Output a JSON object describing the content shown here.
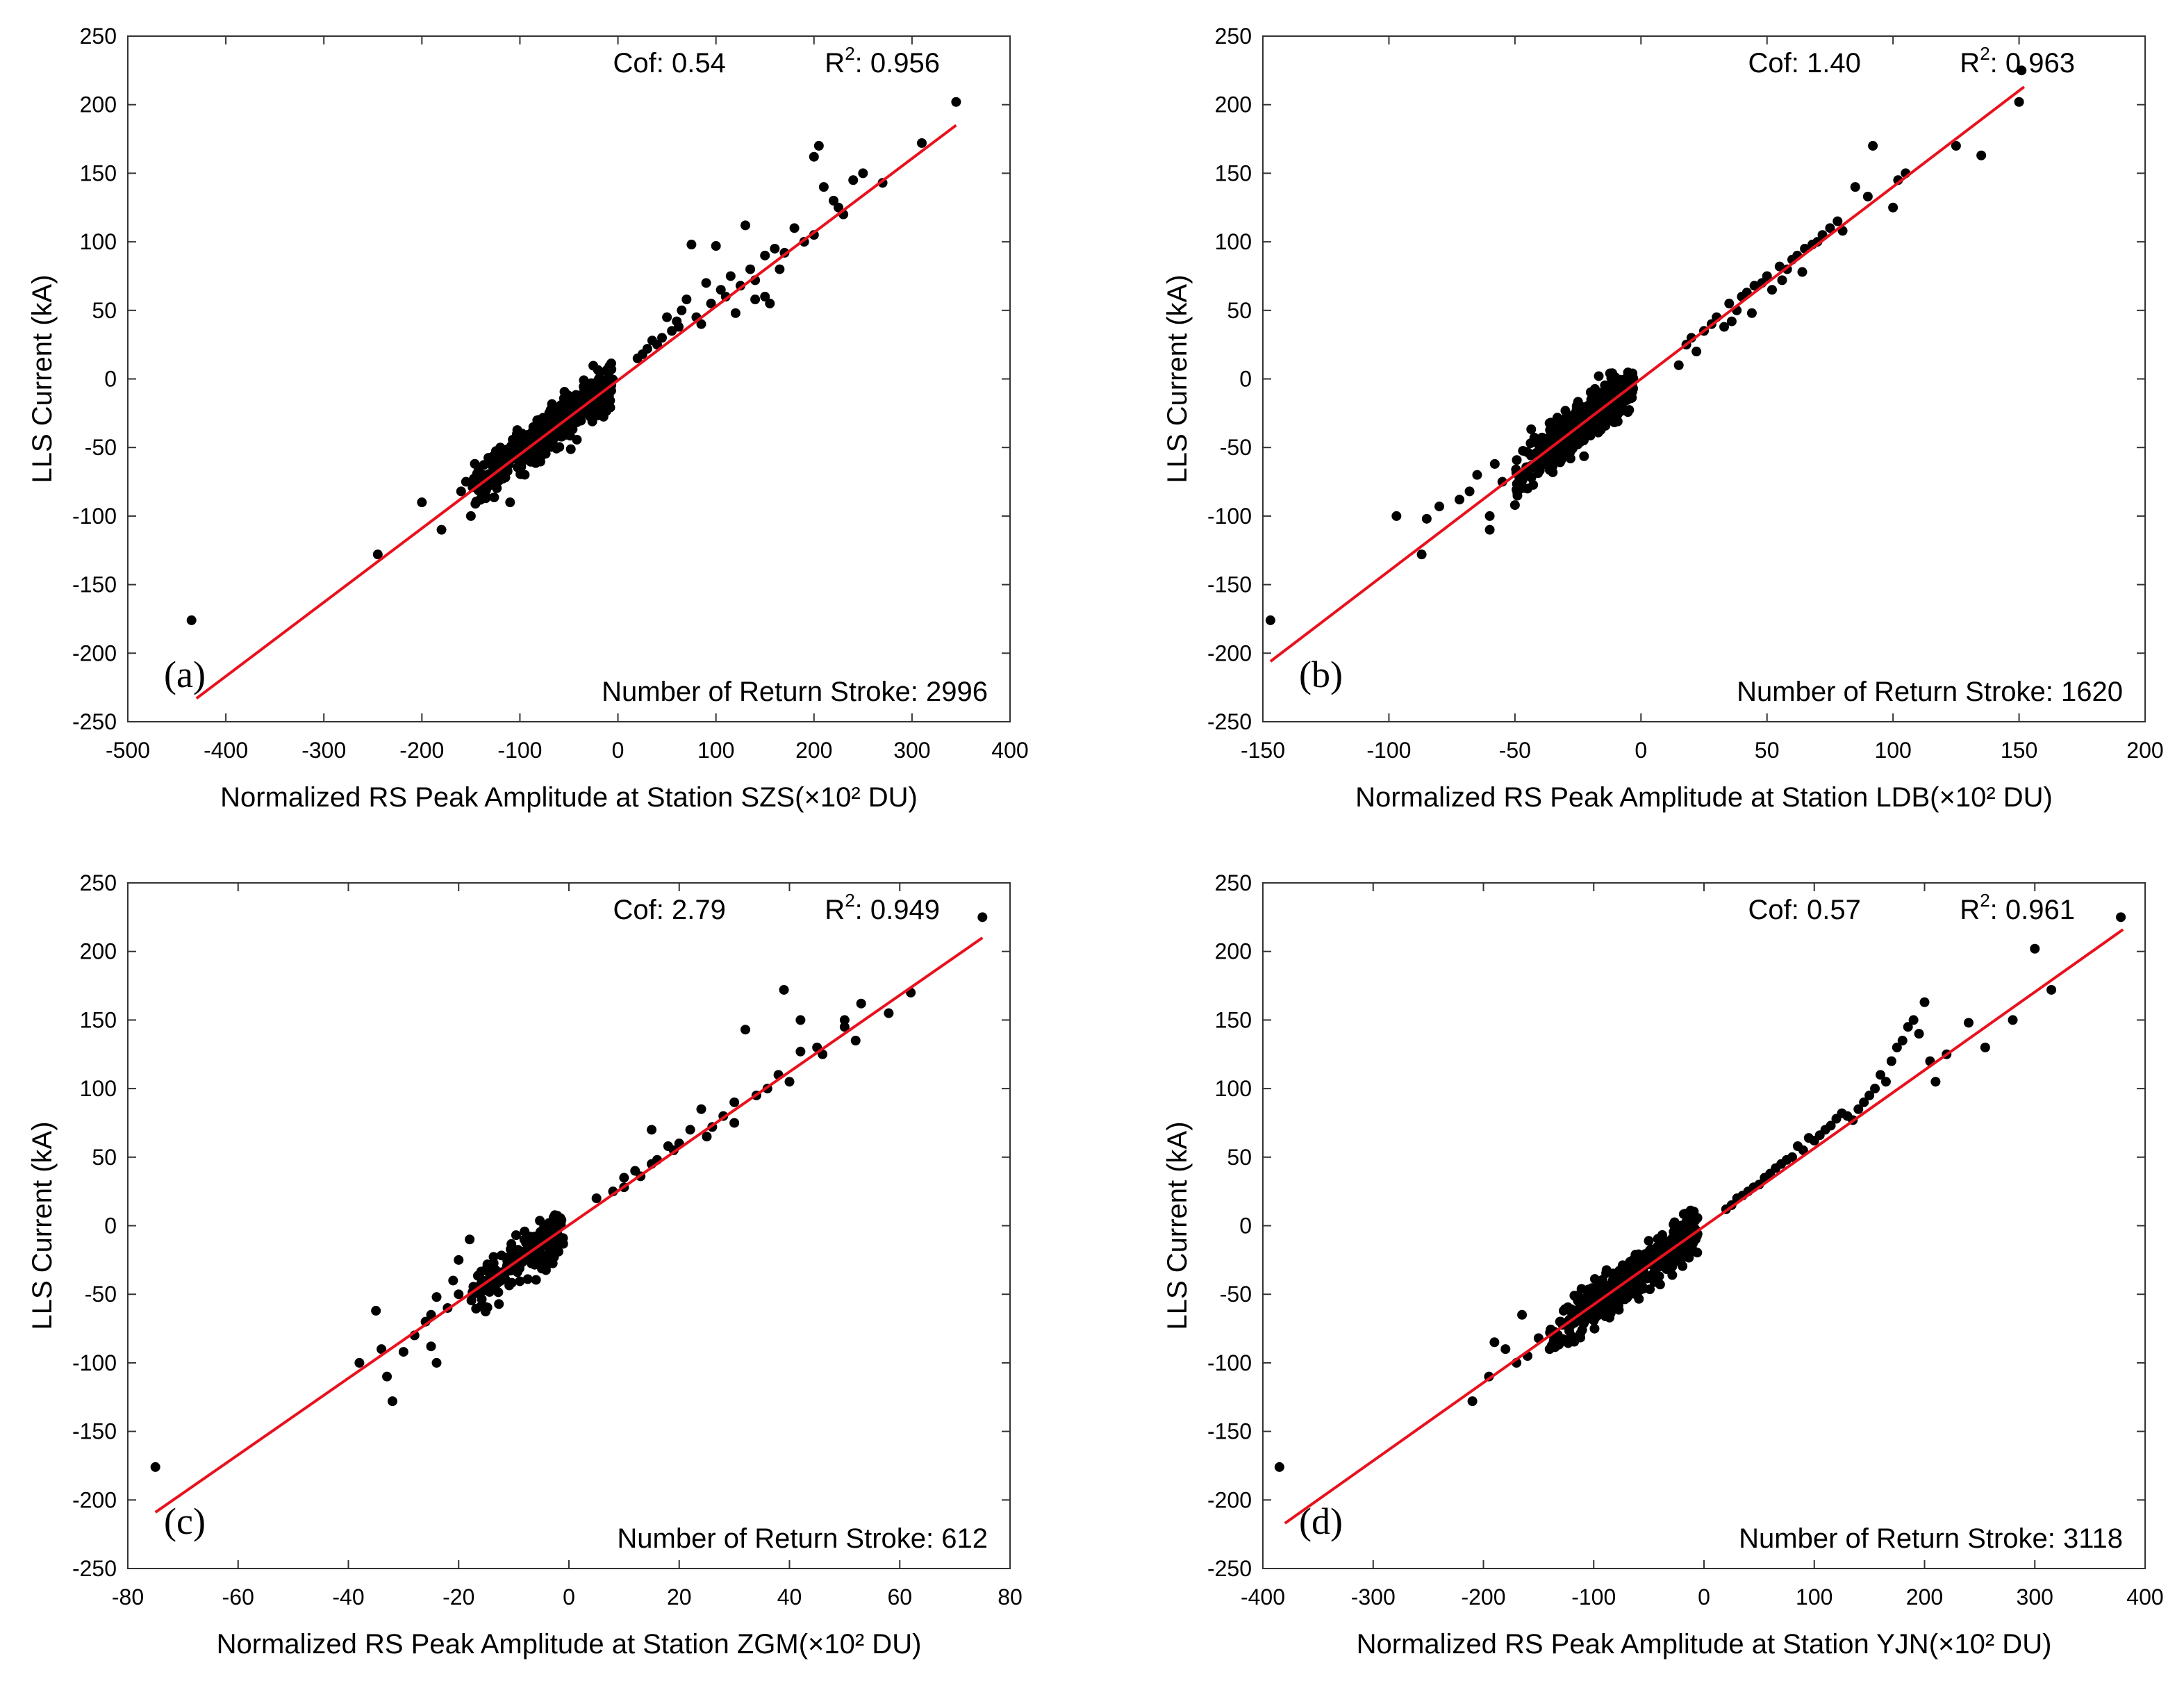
{
  "y_axis_label": "LLS Current (kA)",
  "styles": {
    "point_color": "#000000",
    "fit_color": "#e8111d",
    "frame_color": "#333333",
    "background": "#ffffff"
  },
  "chart_data": [
    {
      "type": "scatter",
      "panel_label": "(a)",
      "xlabel": "Normalized RS Peak Amplitude at Station SZS(×10² DU)",
      "ylabel": "LLS Current (kA)",
      "xlim": [
        -500,
        400
      ],
      "ylim": [
        -250,
        250
      ],
      "xticks": [
        -500,
        -400,
        -300,
        -200,
        -100,
        0,
        100,
        200,
        300,
        400
      ],
      "yticks": [
        -250,
        -200,
        -150,
        -100,
        -50,
        0,
        50,
        100,
        150,
        200,
        250
      ],
      "cof_text": "Cof: 0.54",
      "r2_label": "R",
      "r2_sup": "2",
      "r2_value": ": 0.956",
      "count_text": "Number of Return Stroke: 2996",
      "fit": {
        "x": [
          -430,
          345
        ],
        "y": [
          -233,
          185
        ]
      },
      "cluster": {
        "x_range": [
          -150,
          -5
        ],
        "slope": 0.54,
        "spread": 12,
        "count": 420
      },
      "points": [
        [
          -435,
          -176
        ],
        [
          345,
          202
        ],
        [
          -245,
          -128
        ],
        [
          -200,
          -90
        ],
        [
          -180,
          -110
        ],
        [
          -160,
          -82
        ],
        [
          -150,
          -100
        ],
        [
          -135,
          -85
        ],
        [
          -110,
          -90
        ],
        [
          -155,
          -75
        ],
        [
          20,
          15
        ],
        [
          30,
          22
        ],
        [
          45,
          30
        ],
        [
          60,
          42
        ],
        [
          70,
          58
        ],
        [
          80,
          45
        ],
        [
          95,
          55
        ],
        [
          100,
          97
        ],
        [
          75,
          98
        ],
        [
          130,
          112
        ],
        [
          140,
          72
        ],
        [
          150,
          90
        ],
        [
          165,
          80
        ],
        [
          120,
          48
        ],
        [
          200,
          162
        ],
        [
          205,
          170
        ],
        [
          210,
          140
        ],
        [
          220,
          130
        ],
        [
          225,
          125
        ],
        [
          230,
          120
        ],
        [
          240,
          145
        ],
        [
          270,
          143
        ],
        [
          250,
          150
        ],
        [
          200,
          105
        ],
        [
          190,
          100
        ],
        [
          310,
          172
        ],
        [
          110,
          60
        ],
        [
          125,
          68
        ],
        [
          160,
          95
        ],
        [
          180,
          110
        ],
        [
          140,
          58
        ],
        [
          85,
          40
        ],
        [
          55,
          35
        ],
        [
          40,
          25
        ],
        [
          65,
          50
        ],
        [
          90,
          70
        ],
        [
          115,
          75
        ],
        [
          105,
          65
        ],
        [
          170,
          92
        ],
        [
          135,
          80
        ],
        [
          150,
          60
        ],
        [
          155,
          55
        ],
        [
          25,
          18
        ],
        [
          35,
          28
        ],
        [
          50,
          45
        ],
        [
          62,
          38
        ]
      ]
    },
    {
      "type": "scatter",
      "panel_label": "(b)",
      "xlabel": "Normalized RS Peak Amplitude at Station LDB(×10² DU)",
      "ylabel": "LLS Current (kA)",
      "xlim": [
        -150,
        200
      ],
      "ylim": [
        -250,
        250
      ],
      "xticks": [
        -150,
        -100,
        -50,
        0,
        50,
        100,
        150,
        200
      ],
      "yticks": [
        -250,
        -200,
        -150,
        -100,
        -50,
        0,
        50,
        100,
        150,
        200,
        250
      ],
      "cof_text": "Cof: 1.40",
      "r2_label": "R",
      "r2_sup": "2",
      "r2_value": ": 0.963",
      "count_text": "Number of Return Stroke: 1620",
      "fit": {
        "x": [
          -147,
          152
        ],
        "y": [
          -206,
          213
        ]
      },
      "cluster": {
        "x_range": [
          -50,
          -3
        ],
        "slope": 1.4,
        "spread": 12,
        "count": 360
      },
      "points": [
        [
          -147,
          -176
        ],
        [
          -97,
          -100
        ],
        [
          -87,
          -128
        ],
        [
          -85,
          -102
        ],
        [
          -80,
          -93
        ],
        [
          -72,
          -88
        ],
        [
          -68,
          -82
        ],
        [
          -60,
          -110
        ],
        [
          -60,
          -100
        ],
        [
          -55,
          -75
        ],
        [
          -50,
          -92
        ],
        [
          -65,
          -70
        ],
        [
          -58,
          -62
        ],
        [
          -45,
          -80
        ],
        [
          15,
          10
        ],
        [
          18,
          25
        ],
        [
          25,
          35
        ],
        [
          30,
          45
        ],
        [
          35,
          55
        ],
        [
          40,
          60
        ],
        [
          45,
          68
        ],
        [
          50,
          75
        ],
        [
          55,
          82
        ],
        [
          60,
          87
        ],
        [
          65,
          95
        ],
        [
          70,
          100
        ],
        [
          75,
          110
        ],
        [
          80,
          108
        ],
        [
          85,
          140
        ],
        [
          90,
          133
        ],
        [
          92,
          170
        ],
        [
          100,
          125
        ],
        [
          102,
          145
        ],
        [
          105,
          150
        ],
        [
          125,
          170
        ],
        [
          135,
          163
        ],
        [
          150,
          202
        ],
        [
          151,
          225
        ],
        [
          20,
          30
        ],
        [
          28,
          40
        ],
        [
          33,
          38
        ],
        [
          38,
          50
        ],
        [
          42,
          63
        ],
        [
          48,
          70
        ],
        [
          52,
          65
        ],
        [
          58,
          80
        ],
        [
          62,
          90
        ],
        [
          68,
          98
        ],
        [
          72,
          105
        ],
        [
          78,
          115
        ],
        [
          22,
          20
        ],
        [
          44,
          48
        ],
        [
          56,
          72
        ],
        [
          64,
          78
        ],
        [
          36,
          42
        ]
      ]
    },
    {
      "type": "scatter",
      "panel_label": "(c)",
      "xlabel": "Normalized RS Peak Amplitude at Station ZGM(×10² DU)",
      "ylabel": "LLS Current (kA)",
      "xlim": [
        -80,
        80
      ],
      "ylim": [
        -250,
        250
      ],
      "xticks": [
        -80,
        -60,
        -40,
        -20,
        0,
        20,
        40,
        60,
        80
      ],
      "yticks": [
        -250,
        -200,
        -150,
        -100,
        -50,
        0,
        50,
        100,
        150,
        200,
        250
      ],
      "cof_text": "Cof: 2.79",
      "r2_label": "R",
      "r2_sup": "2",
      "r2_value": ": 0.949",
      "count_text": "Number of Return Stroke: 612",
      "fit": {
        "x": [
          -75,
          75
        ],
        "y": [
          -209,
          210
        ]
      },
      "cluster": {
        "x_range": [
          -18,
          -1
        ],
        "slope": 2.79,
        "spread": 12,
        "count": 220
      },
      "points": [
        [
          -75,
          -176
        ],
        [
          75,
          225
        ],
        [
          -38,
          -100
        ],
        [
          -35,
          -62
        ],
        [
          -34,
          -90
        ],
        [
          -33,
          -110
        ],
        [
          -32,
          -128
        ],
        [
          -30,
          -92
        ],
        [
          -28,
          -80
        ],
        [
          -26,
          -70
        ],
        [
          -25,
          -88
        ],
        [
          -24,
          -100
        ],
        [
          -22,
          -60
        ],
        [
          -20,
          -50
        ],
        [
          -18,
          -10
        ],
        [
          -20,
          -25
        ],
        [
          -25,
          -65
        ],
        [
          -24,
          -52
        ],
        [
          -21,
          -40
        ],
        [
          5,
          20
        ],
        [
          8,
          25
        ],
        [
          10,
          35
        ],
        [
          12,
          40
        ],
        [
          15,
          45
        ],
        [
          15,
          70
        ],
        [
          18,
          58
        ],
        [
          20,
          60
        ],
        [
          22,
          70
        ],
        [
          24,
          85
        ],
        [
          26,
          72
        ],
        [
          28,
          80
        ],
        [
          30,
          90
        ],
        [
          32,
          143
        ],
        [
          34,
          95
        ],
        [
          38,
          110
        ],
        [
          39,
          172
        ],
        [
          42,
          150
        ],
        [
          42,
          127
        ],
        [
          45,
          130
        ],
        [
          50,
          145
        ],
        [
          50,
          150
        ],
        [
          52,
          135
        ],
        [
          53,
          162
        ],
        [
          58,
          155
        ],
        [
          62,
          170
        ],
        [
          10,
          28
        ],
        [
          13,
          36
        ],
        [
          16,
          48
        ],
        [
          19,
          55
        ],
        [
          25,
          65
        ],
        [
          30,
          75
        ],
        [
          36,
          100
        ],
        [
          40,
          105
        ],
        [
          46,
          125
        ]
      ]
    },
    {
      "type": "scatter",
      "panel_label": "(d)",
      "xlabel": "Normalized RS Peak Amplitude at Station YJN(×10² DU)",
      "ylabel": "LLS Current (kA)",
      "xlim": [
        -400,
        400
      ],
      "ylim": [
        -250,
        250
      ],
      "xticks": [
        -400,
        -300,
        -200,
        -100,
        0,
        100,
        200,
        300,
        400
      ],
      "yticks": [
        -250,
        -200,
        -150,
        -100,
        -50,
        0,
        50,
        100,
        150,
        200,
        250
      ],
      "cof_text": "Cof: 0.57",
      "r2_label": "R",
      "r2_sup": "2",
      "r2_value": ": 0.961",
      "count_text": "Number of Return Stroke: 3118",
      "fit": {
        "x": [
          -380,
          380
        ],
        "y": [
          -217,
          216
        ]
      },
      "cluster": {
        "x_range": [
          -140,
          -5
        ],
        "slope": 0.57,
        "spread": 12,
        "count": 420
      },
      "points": [
        [
          -385,
          -176
        ],
        [
          378,
          225
        ],
        [
          -210,
          -128
        ],
        [
          -195,
          -110
        ],
        [
          -190,
          -85
        ],
        [
          -180,
          -90
        ],
        [
          -170,
          -100
        ],
        [
          -160,
          -95
        ],
        [
          -150,
          -82
        ],
        [
          -140,
          -90
        ],
        [
          -130,
          -70
        ],
        [
          -120,
          -72
        ],
        [
          -165,
          -65
        ],
        [
          20,
          12
        ],
        [
          30,
          20
        ],
        [
          45,
          28
        ],
        [
          60,
          38
        ],
        [
          70,
          45
        ],
        [
          80,
          50
        ],
        [
          90,
          55
        ],
        [
          100,
          62
        ],
        [
          110,
          70
        ],
        [
          120,
          78
        ],
        [
          130,
          80
        ],
        [
          140,
          85
        ],
        [
          150,
          95
        ],
        [
          160,
          110
        ],
        [
          170,
          120
        ],
        [
          175,
          130
        ],
        [
          185,
          145
        ],
        [
          190,
          150
        ],
        [
          200,
          163
        ],
        [
          205,
          120
        ],
        [
          210,
          105
        ],
        [
          220,
          125
        ],
        [
          240,
          148
        ],
        [
          255,
          130
        ],
        [
          280,
          150
        ],
        [
          300,
          202
        ],
        [
          315,
          172
        ],
        [
          55,
          35
        ],
        [
          65,
          42
        ],
        [
          75,
          48
        ],
        [
          85,
          58
        ],
        [
          95,
          64
        ],
        [
          105,
          66
        ],
        [
          115,
          73
        ],
        [
          125,
          82
        ],
        [
          135,
          77
        ],
        [
          145,
          90
        ],
        [
          50,
          30
        ],
        [
          40,
          25
        ],
        [
          35,
          22
        ],
        [
          25,
          15
        ],
        [
          155,
          100
        ],
        [
          165,
          105
        ],
        [
          180,
          135
        ],
        [
          195,
          140
        ]
      ]
    }
  ]
}
